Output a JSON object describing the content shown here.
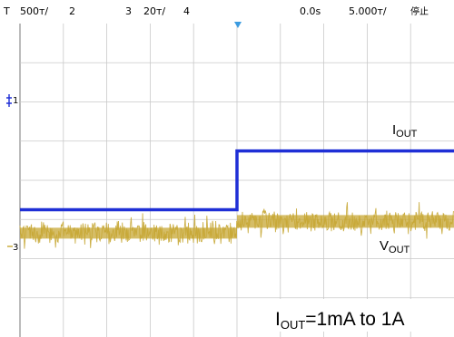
{
  "header": {
    "trigger_marker": "T",
    "ch1_scale": "500т/",
    "ch2_label": "2",
    "ch3_label": "3",
    "ch3_scale": "20т/",
    "ch4_label": "4",
    "time_position": "0.0s",
    "time_scale": "5.000т/",
    "run_state": "停止"
  },
  "markers": {
    "ch1": "1",
    "ch3": "3"
  },
  "colors": {
    "ch1_trace": "#1f2fd6",
    "ch3_trace": "#c7a734",
    "grid": "#c9c9c9",
    "ch1_text": "#c7a734",
    "ch2_text": "#d34fd3",
    "ch3_text": "#c7a734",
    "ch4_text": "#34c76a"
  },
  "annotations": {
    "iout_main": "I",
    "iout_sub": "OUT",
    "vout_main": "V",
    "vout_sub": "OUT",
    "caption_main": "I",
    "caption_sub": "OUT",
    "caption_rest": "=1mA to 1A"
  },
  "chart_data": {
    "type": "line",
    "grid": true,
    "divisions": {
      "x": 10,
      "y": 8
    },
    "step_at_division": 5,
    "series": [
      {
        "name": "IOUT",
        "values_div": [
          -0.75,
          0.75
        ]
      },
      {
        "name": "VOUT",
        "values_div": [
          -1.35,
          -1.05
        ]
      }
    ]
  }
}
